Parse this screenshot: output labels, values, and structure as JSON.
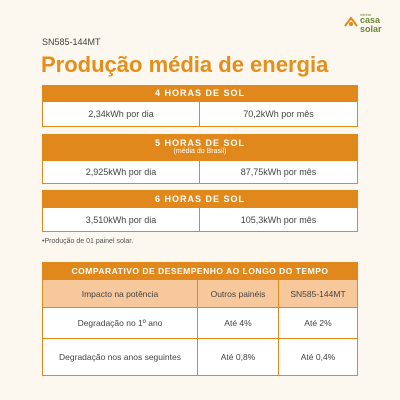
{
  "logo": {
    "line1": "minha",
    "line2": "casa",
    "line3": "solar"
  },
  "model": "SN585-144MT",
  "title": "Produção média de energia",
  "blocks": [
    {
      "header": "4 HORAS DE SOL",
      "cells": [
        "2,34kWh por dia",
        "70,2kWh por mês"
      ]
    },
    {
      "header": "5 HORAS DE SOL",
      "subheader": "(média do Brasil)",
      "cells": [
        "2,925kWh por dia",
        "87,75kWh por mês"
      ]
    },
    {
      "header": "6 HORAS DE SOL",
      "cells": [
        "3,510kWh por dia",
        "105,3kWh por mês"
      ]
    }
  ],
  "footnote": "•Produção de 01 painel solar.",
  "table": {
    "title": "COMPARATIVO DE DESEMPENHO AO LONGO DO TEMPO",
    "header": [
      "Impacto na potência",
      "Outros painéis",
      "SN585-144MT"
    ],
    "rows": [
      [
        "Degradação no 1º ano",
        "Até 4%",
        "Até 2%"
      ],
      [
        "Degradação nos anos seguintes",
        "Até 0,8%",
        "Até 0,4%"
      ]
    ]
  }
}
